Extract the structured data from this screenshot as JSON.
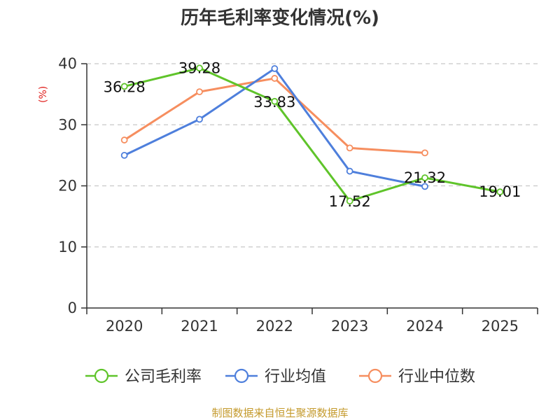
{
  "chart_data": {
    "type": "line",
    "title": "历年毛利率变化情况(%)",
    "ylabel": "(%)",
    "xlabel": "",
    "categories": [
      "2020",
      "2021",
      "2022",
      "2023",
      "2024",
      "2025"
    ],
    "ylim": [
      0,
      40
    ],
    "yticks": [
      0,
      10,
      20,
      30,
      40
    ],
    "grid": true,
    "legend_position": "bottom",
    "series": [
      {
        "name": "公司毛利率",
        "color": "#5fc42a",
        "values": [
          36.28,
          39.28,
          33.83,
          17.52,
          21.32,
          19.01
        ],
        "labels": [
          "36.28",
          "39.28",
          "33.83",
          "17.52",
          "21.32",
          "19.01"
        ]
      },
      {
        "name": "行业均值",
        "color": "#4e7fdc",
        "values": [
          25.0,
          30.9,
          39.2,
          22.4,
          19.9,
          null
        ]
      },
      {
        "name": "行业中位数",
        "color": "#f68e5f",
        "values": [
          27.5,
          35.4,
          37.6,
          26.2,
          25.4,
          null
        ]
      }
    ]
  },
  "source_note": "制图数据来自恒生聚源数据库"
}
